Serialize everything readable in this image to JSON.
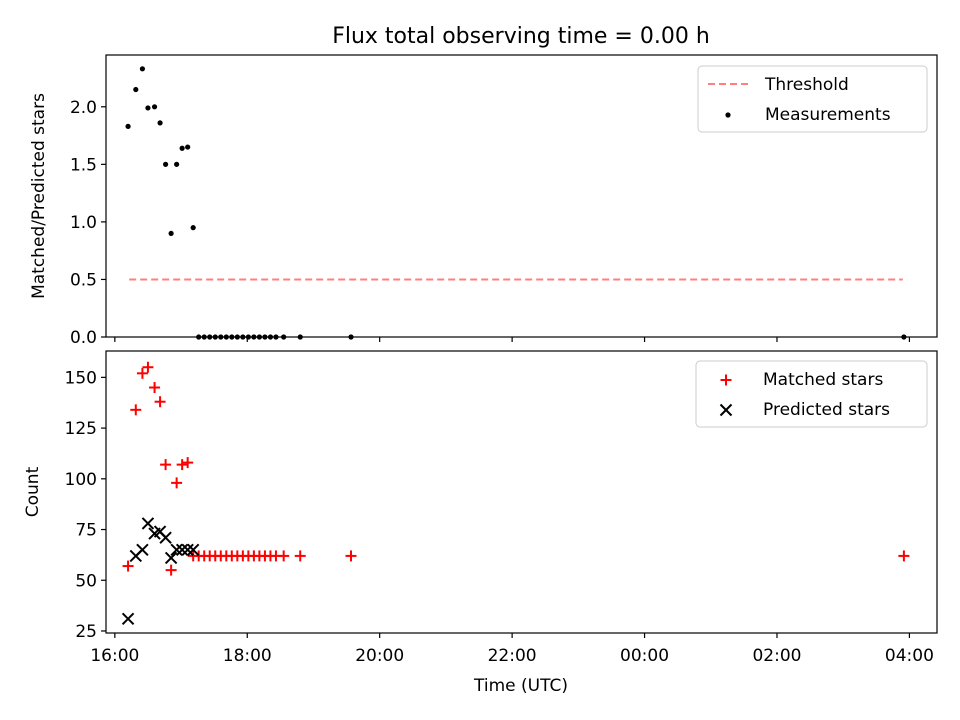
{
  "figure": {
    "title": "Flux total observing time = 0.00 h",
    "xlabel": "Time (UTC)"
  },
  "colors": {
    "threshold": "#ff7f7f",
    "measurements": "#000000",
    "matched": "#ff0000",
    "predicted": "#000000"
  },
  "chart_data": [
    {
      "type": "scatter",
      "ylabel": "Matched/Predicted stars",
      "xlim": [
        "15:52",
        "28:25"
      ],
      "ylim": [
        0,
        2.45
      ],
      "y_ticks": [
        0.0,
        0.5,
        1.0,
        1.5,
        2.0
      ],
      "y_tick_labels": [
        "0.0",
        "0.5",
        "1.0",
        "1.5",
        "2.0"
      ],
      "legend_position": "top-right",
      "grid": false,
      "series": [
        {
          "name": "Threshold",
          "kind": "dashed-line",
          "x": [
            "16:13",
            "27:54"
          ],
          "y": [
            0.5,
            0.5
          ]
        },
        {
          "name": "Measurements",
          "kind": "dot",
          "x": [
            "16:12",
            "16:19",
            "16:25",
            "16:30",
            "16:36",
            "16:41",
            "16:46",
            "16:51",
            "16:56",
            "17:01",
            "17:06",
            "17:11",
            "17:16",
            "17:21",
            "17:26",
            "17:31",
            "17:36",
            "17:41",
            "17:46",
            "17:51",
            "17:56",
            "18:01",
            "18:06",
            "18:11",
            "18:16",
            "18:21",
            "18:26",
            "18:33",
            "18:48",
            "19:34",
            "27:55"
          ],
          "y": [
            1.83,
            2.15,
            2.33,
            1.99,
            2.0,
            1.86,
            1.5,
            0.9,
            1.5,
            1.64,
            1.65,
            0.95,
            0.0,
            0.0,
            0.0,
            0.0,
            0.0,
            0.0,
            0.0,
            0.0,
            0.0,
            0.0,
            0.0,
            0.0,
            0.0,
            0.0,
            0.0,
            0.0,
            0.0,
            0.0,
            0.0
          ]
        }
      ]
    },
    {
      "type": "scatter",
      "ylabel": "Count",
      "xlim": [
        "15:52",
        "28:25"
      ],
      "ylim": [
        24,
        163
      ],
      "y_ticks": [
        25,
        50,
        75,
        100,
        125,
        150
      ],
      "y_tick_labels": [
        "25",
        "50",
        "75",
        "100",
        "125",
        "150"
      ],
      "x_ticks": [
        "16:00",
        "18:00",
        "20:00",
        "22:00",
        "24:00",
        "26:00",
        "28:00"
      ],
      "x_tick_labels": [
        "16:00",
        "18:00",
        "20:00",
        "22:00",
        "00:00",
        "02:00",
        "04:00"
      ],
      "legend_position": "top-right",
      "grid": false,
      "series": [
        {
          "name": "Matched stars",
          "kind": "plus",
          "x": [
            "16:12",
            "16:19",
            "16:25",
            "16:30",
            "16:36",
            "16:41",
            "16:46",
            "16:51",
            "16:56",
            "17:01",
            "17:06",
            "17:11",
            "17:16",
            "17:21",
            "17:26",
            "17:31",
            "17:36",
            "17:41",
            "17:46",
            "17:51",
            "17:56",
            "18:01",
            "18:06",
            "18:11",
            "18:16",
            "18:21",
            "18:26",
            "18:33",
            "18:48",
            "19:34",
            "27:55"
          ],
          "y": [
            57,
            134,
            152,
            155,
            145,
            138,
            107,
            55,
            98,
            107,
            108,
            62,
            62,
            62,
            62,
            62,
            62,
            62,
            62,
            62,
            62,
            62,
            62,
            62,
            62,
            62,
            62,
            62,
            62,
            62,
            62
          ]
        },
        {
          "name": "Predicted stars",
          "kind": "x",
          "x": [
            "16:12",
            "16:19",
            "16:25",
            "16:30",
            "16:36",
            "16:41",
            "16:46",
            "16:51",
            "16:56",
            "17:01",
            "17:06",
            "17:11"
          ],
          "y": [
            31,
            62,
            65,
            78,
            73,
            74,
            71,
            61,
            65,
            65,
            65,
            65
          ]
        }
      ]
    }
  ]
}
